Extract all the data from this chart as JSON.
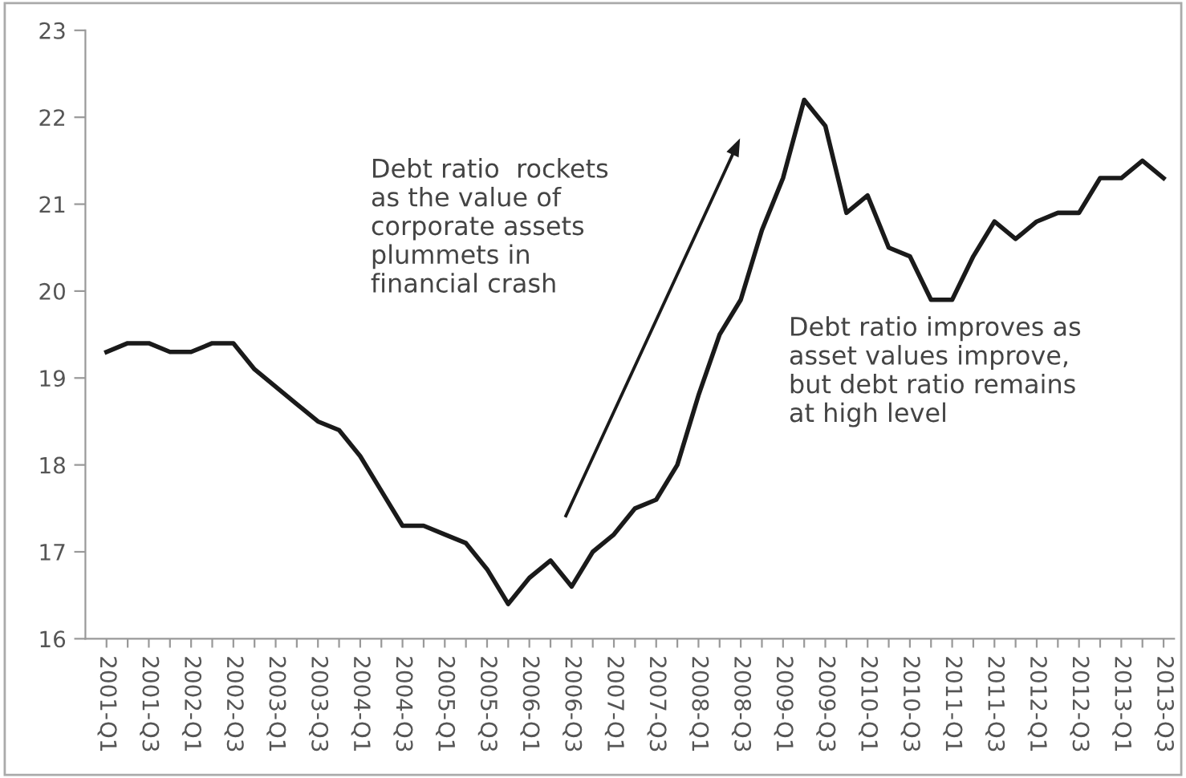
{
  "chart_data": {
    "type": "line",
    "categories": [
      "2001-Q1",
      null,
      "2001-Q3",
      null,
      "2002-Q1",
      null,
      "2002-Q3",
      null,
      "2003-Q1",
      null,
      "2003-Q3",
      null,
      "2004-Q1",
      null,
      "2004-Q3",
      null,
      "2005-Q1",
      null,
      "2005-Q3",
      null,
      "2006-Q1",
      null,
      "2006-Q3",
      null,
      "2007-Q1",
      null,
      "2007-Q3",
      null,
      "2008-Q1",
      null,
      "2008-Q3",
      null,
      "2009-Q1",
      null,
      "2009-Q3",
      null,
      "2010-Q1",
      null,
      "2010-Q3",
      null,
      "2011-Q1",
      null,
      "2011-Q3",
      null,
      "2012-Q1",
      null,
      "2012-Q3",
      null,
      "2013-Q1",
      null,
      "2013-Q3"
    ],
    "series": [
      {
        "color": "#1a1a1a",
        "values": [
          19.3,
          19.4,
          19.4,
          19.3,
          19.3,
          19.4,
          19.4,
          19.1,
          18.9,
          18.7,
          18.5,
          18.4,
          18.1,
          17.7,
          17.3,
          17.3,
          17.2,
          17.1,
          16.8,
          16.4,
          16.7,
          16.9,
          16.6,
          17.0,
          17.2,
          17.5,
          17.6,
          18.0,
          18.8,
          19.5,
          19.9,
          20.7,
          21.3,
          22.2,
          21.9,
          20.9,
          21.1,
          20.5,
          20.4,
          19.9,
          19.9,
          20.4,
          20.8,
          20.6,
          20.8,
          20.9,
          20.9,
          21.3,
          21.3,
          21.5,
          21.3
        ]
      }
    ],
    "ylim": [
      16,
      23
    ],
    "yticks": [
      16,
      17,
      18,
      19,
      20,
      21,
      22,
      23
    ],
    "grid": false,
    "marker": "none",
    "line_style": "solid",
    "annotations": [
      "Debt ratio  rockets\nas the value of\ncorporate assets\nplummets in\nfinancial crash",
      "Debt ratio improves as\nasset values improve,\nbut debt ratio remains\nat high level"
    ]
  }
}
